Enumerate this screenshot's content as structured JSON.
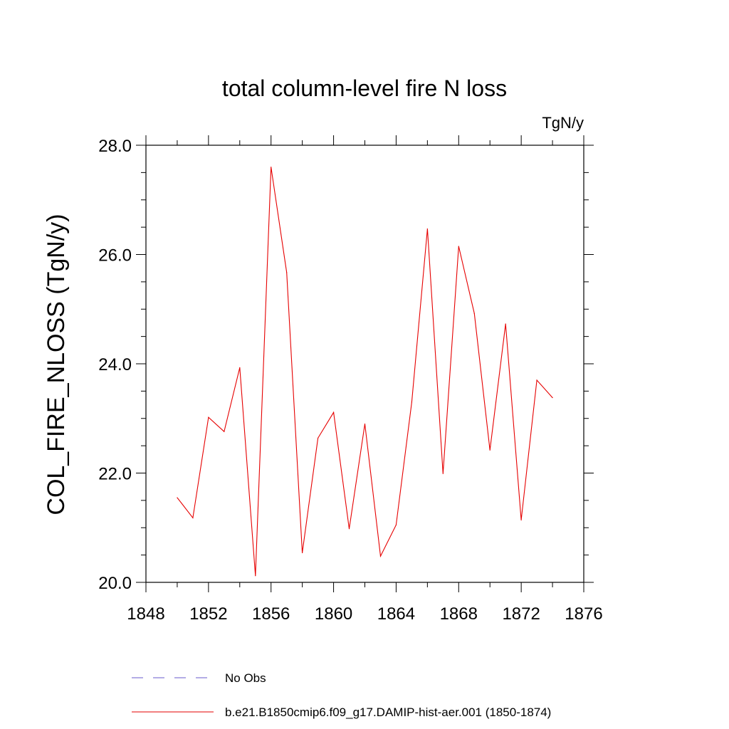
{
  "chart_data": {
    "type": "line",
    "title": "total column-level fire N loss",
    "units_label": "TgN/y",
    "ylabel": "COL_FIRE_NLOSS  (TgN/y)",
    "xlabel": "",
    "xlim": [
      1848,
      1876
    ],
    "ylim": [
      20.0,
      28.0
    ],
    "x_ticks": [
      "1848",
      "1852",
      "1856",
      "1860",
      "1864",
      "1868",
      "1872",
      "1876"
    ],
    "y_ticks": [
      "20.0",
      "22.0",
      "24.0",
      "26.0",
      "28.0"
    ],
    "colors": {
      "series": "#e60000",
      "obs": "#6a5acd"
    },
    "legend": [
      {
        "label": "No Obs",
        "style": "dashed",
        "color": "#6a5acd"
      },
      {
        "label": "b.e21.B1850cmip6.f09_g17.DAMIP-hist-aer.001 (1850-1874)",
        "style": "solid",
        "color": "#e60000"
      }
    ],
    "series": [
      {
        "name": "b.e21.B1850cmip6.f09_g17.DAMIP-hist-aer.001 (1850-1874)",
        "x": [
          1850,
          1851,
          1852,
          1853,
          1854,
          1855,
          1856,
          1857,
          1858,
          1859,
          1860,
          1861,
          1862,
          1863,
          1864,
          1865,
          1866,
          1867,
          1868,
          1869,
          1870,
          1871,
          1872,
          1873,
          1874
        ],
        "values": [
          21.55,
          21.18,
          23.02,
          22.76,
          23.93,
          20.12,
          27.6,
          25.67,
          20.54,
          22.64,
          23.11,
          20.98,
          22.9,
          20.48,
          21.05,
          23.3,
          26.47,
          21.99,
          26.15,
          24.92,
          22.42,
          24.73,
          21.14,
          23.7,
          23.38
        ]
      }
    ]
  }
}
